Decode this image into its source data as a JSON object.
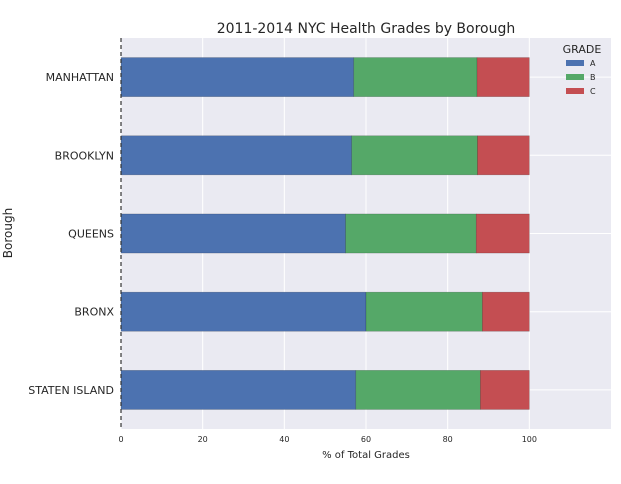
{
  "chart_data": {
    "type": "bar",
    "orientation": "horizontal",
    "stacked": true,
    "title": "2011-2014 NYC Health Grades by Borough",
    "xlabel": "% of Total Grades",
    "ylabel": "Borough",
    "xlim": [
      0,
      120
    ],
    "xticks": [
      "0",
      "20",
      "40",
      "60",
      "80",
      "100"
    ],
    "categories": [
      "MANHATTAN",
      "BROOKLYN",
      "QUEENS",
      "BRONX",
      "STATEN ISLAND"
    ],
    "series": [
      {
        "name": "A",
        "color": "#4c72b0",
        "values": [
          57.0,
          56.5,
          55.0,
          60.0,
          57.5
        ]
      },
      {
        "name": "B",
        "color": "#55a868",
        "values": [
          30.2,
          30.8,
          32.0,
          28.5,
          30.5
        ]
      },
      {
        "name": "C",
        "color": "#c44e52",
        "values": [
          12.8,
          12.7,
          13.0,
          11.5,
          12.0
        ]
      }
    ],
    "legend": {
      "title": "GRADE",
      "placement": "top-right"
    },
    "grid": true,
    "background": "#eaeaf2"
  }
}
